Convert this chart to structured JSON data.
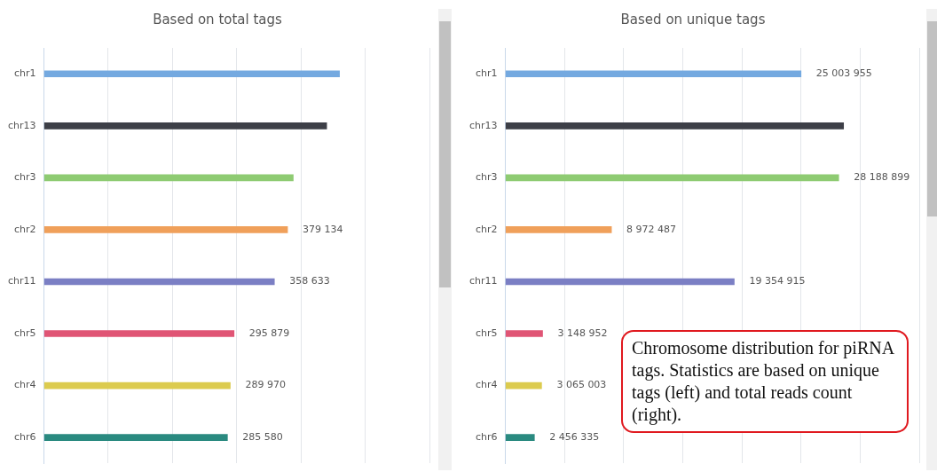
{
  "chart_data": [
    {
      "type": "bar",
      "orientation": "horizontal",
      "title": "Based on total tags",
      "categories": [
        "chr1",
        "chr13",
        "chr3",
        "chr2",
        "chr11",
        "chr5",
        "chr4",
        "chr6"
      ],
      "values": [
        460000,
        440000,
        388000,
        379134,
        358633,
        295879,
        289970,
        285580
      ],
      "value_labels": [
        null,
        null,
        null,
        "379 134",
        "358 633",
        "295 879",
        "289 970",
        "285 580"
      ],
      "colors": [
        "#74a9e0",
        "#3d3f47",
        "#8ecb72",
        "#f0a05a",
        "#7b7fc4",
        "#e05575",
        "#dccb4e",
        "#2a8a80"
      ],
      "xlim": [
        0,
        600000
      ],
      "xticks": [
        {
          "value": 0,
          "label": null
        },
        {
          "value": 100000,
          "label": null
        },
        {
          "value": 200000,
          "label": null
        },
        {
          "value": 300000,
          "label": null
        },
        {
          "value": 400000,
          "label": null
        },
        {
          "value": 500000,
          "label": null
        },
        {
          "value": 600000,
          "label": null
        }
      ],
      "tick_labels": "y",
      "grid": "x",
      "annotations": [
        "Chromosome distribution for piRNA tags. Statistics are based on unique tags (left) and total reads count (right)."
      ]
    },
    {
      "type": "bar",
      "orientation": "horizontal",
      "title": "Based on unique tags",
      "categories": [
        "chr1",
        "chr13",
        "chr3",
        "chr2",
        "chr11",
        "chr5",
        "chr4",
        "chr6"
      ],
      "values": [
        25003955,
        28600000,
        28188899,
        8972487,
        19354915,
        3148952,
        3065003,
        2456335
      ],
      "value_labels": [
        "25 003 955",
        null,
        "28 188 899",
        "8 972 487",
        "19 354 915",
        "3 148 952",
        "3 065 003",
        "2 456 335"
      ],
      "colors": [
        "#74a9e0",
        "#3d3f47",
        "#8ecb72",
        "#f0a05a",
        "#7b7fc4",
        "#e05575",
        "#dccb4e",
        "#2a8a80"
      ],
      "xlim": [
        0,
        35000000
      ],
      "xticks": [
        {
          "value": 0,
          "label": null
        },
        {
          "value": 5000000,
          "label": null
        },
        {
          "value": 10000000,
          "label": null
        },
        {
          "value": 15000000,
          "label": null
        },
        {
          "value": 20000000,
          "label": null
        },
        {
          "value": 25000000,
          "label": null
        },
        {
          "value": 30000000,
          "label": null
        },
        {
          "value": 35000000,
          "label": null
        }
      ],
      "tick_labels": "y",
      "grid": "x"
    }
  ]
}
